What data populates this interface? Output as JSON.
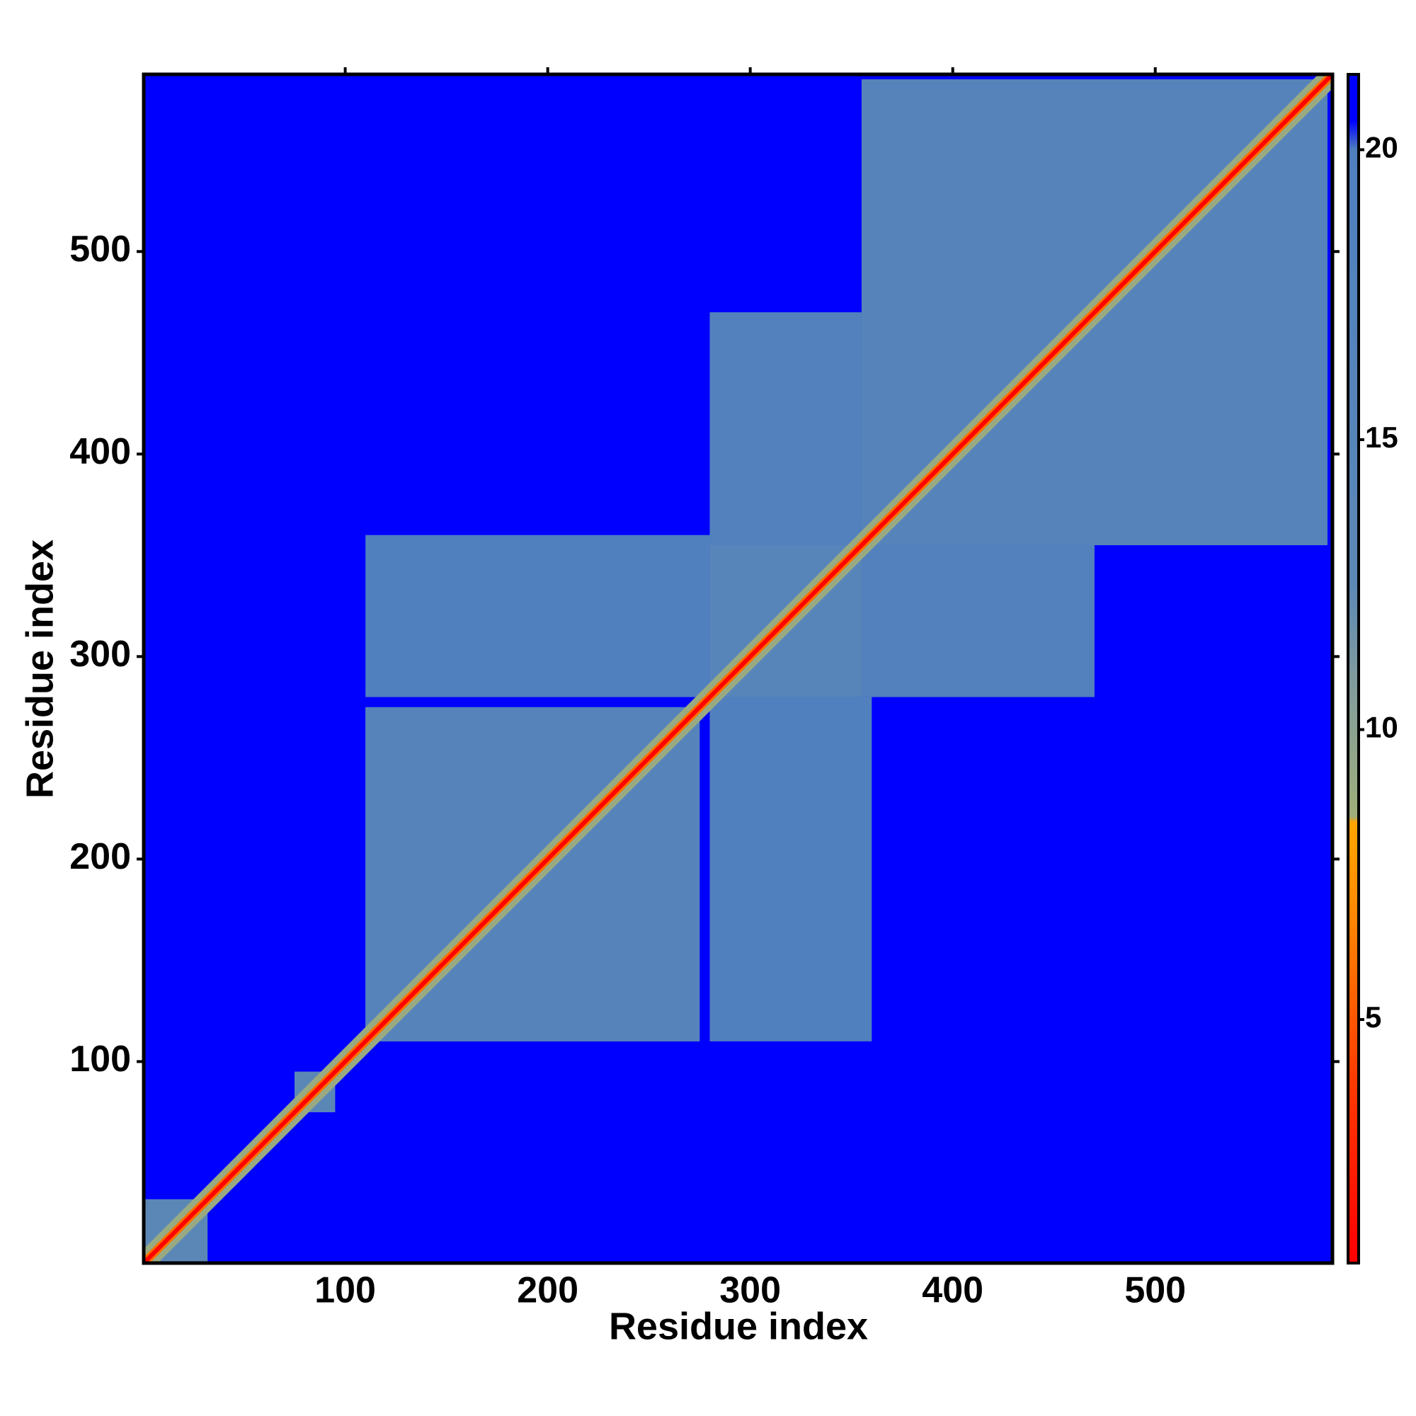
{
  "chart_data": {
    "type": "heatmap",
    "x_label": "Residue index",
    "y_label": "Residue index",
    "xlim": [
      0.5,
      587.5
    ],
    "ylim": [
      0.5,
      587.5
    ],
    "xticks": [
      100,
      200,
      300,
      400,
      500
    ],
    "yticks": [
      100,
      200,
      300,
      400,
      500
    ],
    "background": 21,
    "regions": [
      {
        "x": [
          110,
          280
        ],
        "y": [
          280,
          360
        ],
        "value": 19
      },
      {
        "x": [
          280,
          355
        ],
        "y": [
          355,
          470
        ],
        "value": 18
      },
      {
        "x": [
          110,
          275
        ],
        "y": [
          110,
          275
        ],
        "value": 16
      },
      {
        "x": [
          280,
          355
        ],
        "y": [
          280,
          355
        ],
        "value": 15
      },
      {
        "x": [
          355,
          585
        ],
        "y": [
          355,
          585
        ],
        "value": 16
      },
      {
        "x": [
          1,
          32
        ],
        "y": [
          1,
          32
        ],
        "value": 13
      },
      {
        "x": [
          75,
          95
        ],
        "y": [
          75,
          95
        ],
        "value": 13
      }
    ],
    "diagonal_bands": [
      {
        "width": 14,
        "value": 9
      },
      {
        "width": 6,
        "value": 6
      },
      {
        "width": 3,
        "value": 1
      }
    ],
    "colorbar": {
      "zlim": [
        0.8,
        21.3
      ],
      "ticks": [
        5,
        10,
        15,
        20
      ],
      "colorscale": [
        {
          "value": 0.8,
          "color": "#ff0000"
        },
        {
          "value": 4,
          "color": "#ff3c00"
        },
        {
          "value": 7,
          "color": "#ff8c00"
        },
        {
          "value": 8.4,
          "color": "#ffa500"
        },
        {
          "value": 8.5,
          "color": "#9fae7a"
        },
        {
          "value": 11,
          "color": "#7e9aa0"
        },
        {
          "value": 12.5,
          "color": "#5c88b6"
        },
        {
          "value": 20,
          "color": "#4f7fbf"
        },
        {
          "value": 20.5,
          "color": "#0000ff"
        },
        {
          "value": 21.3,
          "color": "#0000ff"
        }
      ]
    }
  }
}
